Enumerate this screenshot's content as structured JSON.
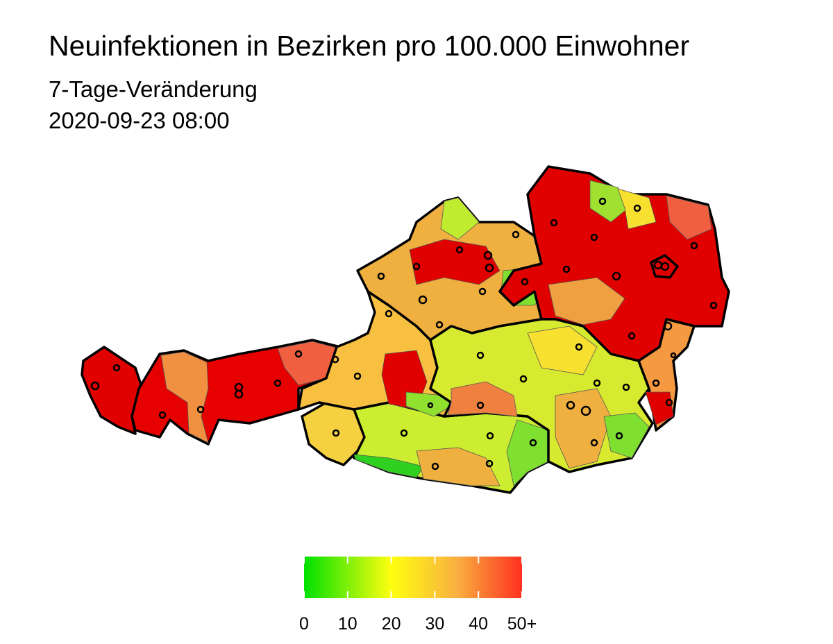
{
  "header": {
    "title": "Neuinfektionen in Bezirken pro 100.000 Einwohner",
    "subtitle": "7-Tage-Veränderung",
    "timestamp": "2020-09-23 08:00"
  },
  "legend": {
    "range": [
      0,
      50
    ],
    "ticks": [
      0,
      10,
      20,
      30,
      40,
      {
        "value": 50,
        "label": "50+"
      }
    ]
  }
}
